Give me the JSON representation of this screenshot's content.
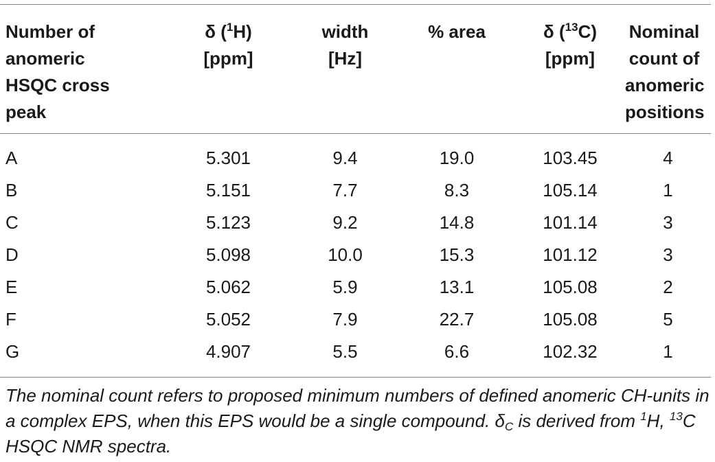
{
  "table": {
    "headers": {
      "col1": [
        "Number of",
        "anomeric",
        "HSQC cross",
        "peak"
      ],
      "col2_line1_pre": "δ (",
      "col2_sup": "1",
      "col2_line1_post": "H)",
      "col2_line2": "[ppm]",
      "col3": [
        "width",
        "[Hz]"
      ],
      "col4": "% area",
      "col5_line1_pre": "δ (",
      "col5_sup": "13",
      "col5_line1_post": "C)",
      "col5_line2": "[ppm]",
      "col6": [
        "Nominal",
        "count of",
        "anomeric",
        "positions"
      ]
    },
    "rows": [
      {
        "peak": "A",
        "h": "5.301",
        "width": "9.4",
        "area": "19.0",
        "c": "103.45",
        "count": "4"
      },
      {
        "peak": "B",
        "h": "5.151",
        "width": "7.7",
        "area": "8.3",
        "c": "105.14",
        "count": "1"
      },
      {
        "peak": "C",
        "h": "5.123",
        "width": "9.2",
        "area": "14.8",
        "c": "101.14",
        "count": "3"
      },
      {
        "peak": "D",
        "h": "5.098",
        "width": "10.0",
        "area": "15.3",
        "c": "101.12",
        "count": "3"
      },
      {
        "peak": "E",
        "h": "5.062",
        "width": "5.9",
        "area": "13.1",
        "c": "105.08",
        "count": "2"
      },
      {
        "peak": "F",
        "h": "5.052",
        "width": "7.9",
        "area": "22.7",
        "c": "105.08",
        "count": "5"
      },
      {
        "peak": "G",
        "h": "4.907",
        "width": "5.5",
        "area": "6.6",
        "c": "102.32",
        "count": "1"
      }
    ]
  },
  "footnote": {
    "part1": "The nominal count refers to proposed minimum numbers of defined anomeric CH-units in a complex EPS, when this EPS would be a single compound. δ",
    "sub_c": "C",
    "part2": " is derived from ",
    "sup1": "1",
    "part3": "H, ",
    "sup2": "13",
    "part4": "C HSQC NMR spectra."
  }
}
